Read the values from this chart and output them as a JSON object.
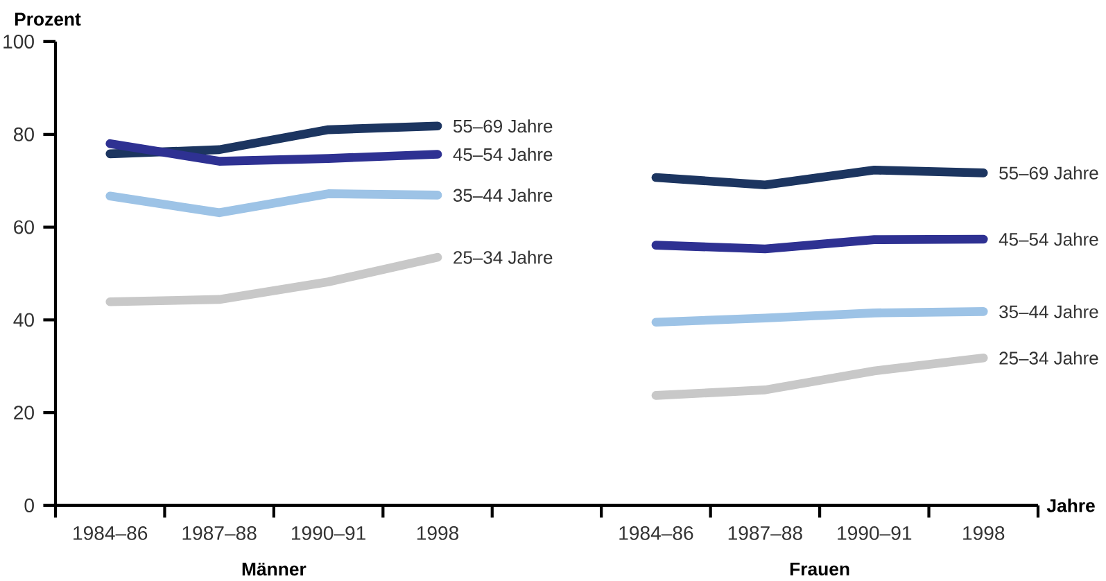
{
  "chart_data": {
    "type": "line",
    "ylabel": "Prozent",
    "xlabel": "Jahre",
    "categories": [
      "1984–86",
      "1987–88",
      "1990–91",
      "1998",
      null,
      "1984–86",
      "1987–88",
      "1990–91",
      "1998"
    ],
    "series": [
      {
        "name": "55–69 Jahre",
        "color": "#1c3560",
        "values": [
          75.8,
          76.7,
          81,
          81.8,
          null,
          70.7,
          69.1,
          72.3,
          71.7
        ]
      },
      {
        "name": "45–54 Jahre",
        "color": "#2e3192",
        "values": [
          78,
          74.2,
          74.8,
          75.7,
          null,
          56.1,
          55.3,
          57.3,
          57.4
        ]
      },
      {
        "name": "35–44 Jahre",
        "color": "#9dc3e6",
        "values": [
          66.7,
          63.1,
          67.2,
          66.9,
          null,
          39.5,
          40.4,
          41.5,
          41.8
        ]
      },
      {
        "name": "25–34 Jahre",
        "color": "#c8c8c8",
        "values": [
          43.9,
          44.4,
          48.2,
          53.5,
          null,
          23.7,
          24.9,
          29,
          31.8
        ]
      }
    ],
    "ylim": [
      0,
      100
    ],
    "yticks": [
      0,
      20,
      40,
      60,
      80,
      100
    ],
    "annotations": [
      "Männer",
      "Frauen"
    ],
    "line_style": "solid",
    "legend": false,
    "grid": false
  }
}
